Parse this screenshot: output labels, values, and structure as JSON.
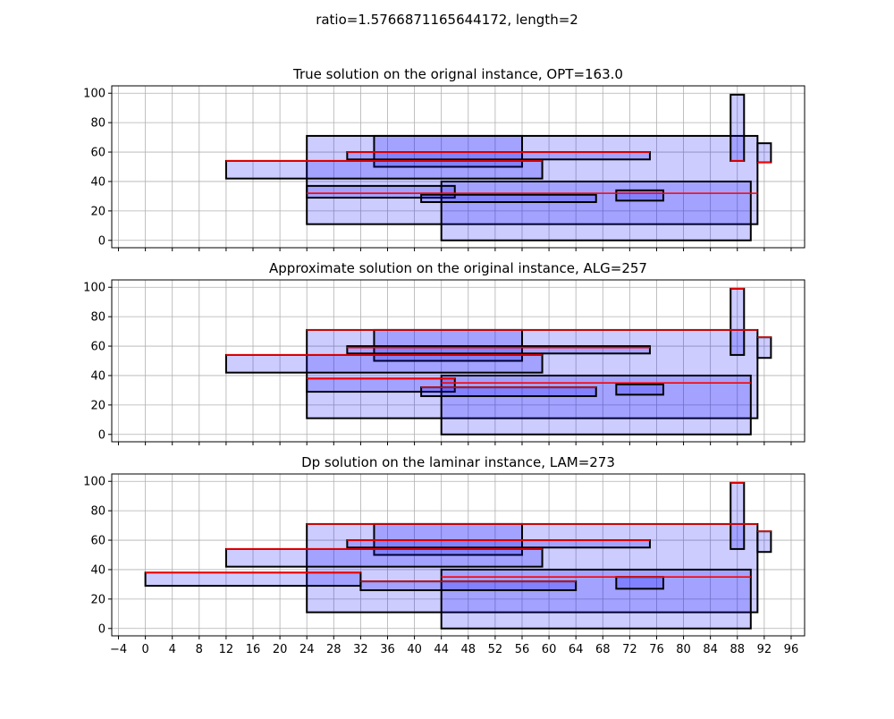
{
  "figure": {
    "suptitle": "ratio=1.5766871165644172, length=2"
  },
  "colors": {
    "rect_fill": "#0000ff",
    "rect_fill_alpha": 0.2,
    "edge": "#000000",
    "top_line": "#ff0000",
    "grid": "#b0b0b0"
  },
  "axes": {
    "xlim": [
      -5,
      98
    ],
    "ylim": [
      -5,
      105
    ],
    "xticks": [
      -4,
      0,
      4,
      8,
      12,
      16,
      20,
      24,
      28,
      32,
      36,
      40,
      44,
      48,
      52,
      56,
      60,
      64,
      68,
      72,
      76,
      80,
      84,
      88,
      92,
      96
    ],
    "yticks": [
      0,
      20,
      40,
      60,
      80,
      100
    ],
    "grid": true
  },
  "chart_data": [
    {
      "type": "rectangles",
      "title": "True solution on the orignal instance, OPT=163.0",
      "show_xticklabels": false,
      "rects": [
        {
          "x0": 24,
          "x1": 91,
          "y0": 11,
          "y1": 71,
          "red_y": null
        },
        {
          "x0": 44,
          "x1": 90,
          "y0": 0,
          "y1": 40,
          "red_y": null
        },
        {
          "x0": 34,
          "x1": 56,
          "y0": 50,
          "y1": 71,
          "red_y": null
        },
        {
          "x0": 12,
          "x1": 59,
          "y0": 42,
          "y1": 54,
          "red_y": 54
        },
        {
          "x0": 30,
          "x1": 75,
          "y0": 55,
          "y1": 60,
          "red_y": 60
        },
        {
          "x0": 24,
          "x1": 46,
          "y0": 29,
          "y1": 37,
          "red_y": 32
        },
        {
          "x0": 41,
          "x1": 67,
          "y0": 26,
          "y1": 31,
          "red_y": null
        },
        {
          "x0": 70,
          "x1": 77,
          "y0": 27,
          "y1": 34,
          "red_y": null
        },
        {
          "x0": 87,
          "x1": 89,
          "y0": 54,
          "y1": 99,
          "red_y": 54
        },
        {
          "x0": 91,
          "x1": 93,
          "y0": 53,
          "y1": 66,
          "red_y": 53
        }
      ],
      "extra_red_lines": [
        {
          "x0": 24,
          "x1": 91,
          "y": 32
        }
      ]
    },
    {
      "type": "rectangles",
      "title": "Approximate solution on the original instance, ALG=257",
      "show_xticklabels": false,
      "rects": [
        {
          "x0": 24,
          "x1": 91,
          "y0": 11,
          "y1": 71,
          "red_y": 71
        },
        {
          "x0": 44,
          "x1": 90,
          "y0": 0,
          "y1": 40,
          "red_y": 35
        },
        {
          "x0": 34,
          "x1": 56,
          "y0": 50,
          "y1": 71,
          "red_y": null
        },
        {
          "x0": 12,
          "x1": 59,
          "y0": 42,
          "y1": 54,
          "red_y": 54
        },
        {
          "x0": 30,
          "x1": 75,
          "y0": 55,
          "y1": 60,
          "red_y": 59
        },
        {
          "x0": 24,
          "x1": 46,
          "y0": 29,
          "y1": 38,
          "red_y": 38
        },
        {
          "x0": 41,
          "x1": 67,
          "y0": 26,
          "y1": 32,
          "red_y": 32
        },
        {
          "x0": 70,
          "x1": 77,
          "y0": 27,
          "y1": 34,
          "red_y": null
        },
        {
          "x0": 87,
          "x1": 89,
          "y0": 54,
          "y1": 99,
          "red_y": 99
        },
        {
          "x0": 91,
          "x1": 93,
          "y0": 52,
          "y1": 66,
          "red_y": 66
        }
      ],
      "extra_red_lines": []
    },
    {
      "type": "rectangles",
      "title": "Dp solution on the laminar instance, LAM=273",
      "show_xticklabels": true,
      "rects": [
        {
          "x0": 24,
          "x1": 91,
          "y0": 11,
          "y1": 71,
          "red_y": 71
        },
        {
          "x0": 44,
          "x1": 90,
          "y0": 0,
          "y1": 40,
          "red_y": 35
        },
        {
          "x0": 34,
          "x1": 56,
          "y0": 50,
          "y1": 71,
          "red_y": null
        },
        {
          "x0": 12,
          "x1": 59,
          "y0": 42,
          "y1": 54,
          "red_y": 54
        },
        {
          "x0": 30,
          "x1": 75,
          "y0": 55,
          "y1": 60,
          "red_y": 60
        },
        {
          "x0": 0,
          "x1": 32,
          "y0": 29,
          "y1": 38,
          "red_y": 38
        },
        {
          "x0": 32,
          "x1": 64,
          "y0": 26,
          "y1": 32,
          "red_y": 32
        },
        {
          "x0": 70,
          "x1": 77,
          "y0": 27,
          "y1": 35,
          "red_y": null
        },
        {
          "x0": 87,
          "x1": 89,
          "y0": 54,
          "y1": 99,
          "red_y": 99
        },
        {
          "x0": 91,
          "x1": 93,
          "y0": 52,
          "y1": 66,
          "red_y": 66
        }
      ],
      "extra_red_lines": []
    }
  ]
}
